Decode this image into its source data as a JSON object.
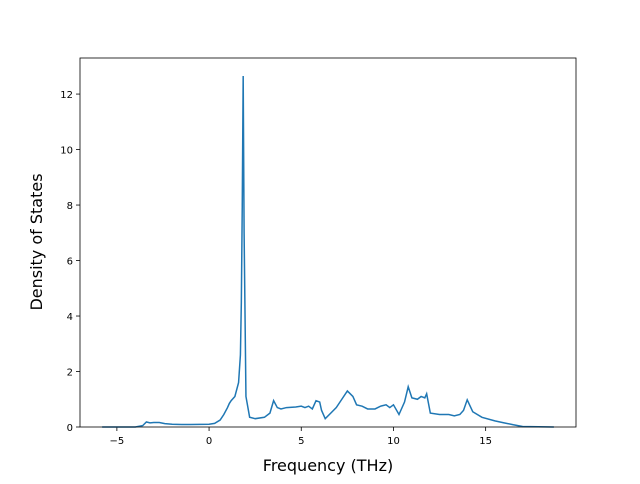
{
  "chart_data": {
    "type": "line",
    "xlabel": "Frequency (THz)",
    "ylabel": "Density of States",
    "x": [
      -5.8,
      -4,
      -3.6,
      -3.4,
      -3.2,
      -3,
      -2.7,
      -2.4,
      -2,
      -1.5,
      -1,
      0,
      0.3,
      0.6,
      0.8,
      1,
      1.1,
      1.2,
      1.4,
      1.6,
      1.7,
      1.75,
      1.8,
      1.85,
      1.9,
      2.0,
      2.2,
      2.5,
      3,
      3.3,
      3.5,
      3.7,
      3.9,
      4.2,
      4.7,
      5,
      5.2,
      5.4,
      5.6,
      5.8,
      6,
      6.1,
      6.3,
      6.6,
      6.9,
      7.2,
      7.5,
      7.8,
      8,
      8.3,
      8.6,
      9,
      9.3,
      9.6,
      9.8,
      10,
      10.3,
      10.6,
      10.8,
      11,
      11.3,
      11.5,
      11.7,
      11.8,
      12,
      12.5,
      13,
      13.3,
      13.6,
      13.8,
      14,
      14.3,
      14.8,
      15.5,
      16,
      16.5,
      17,
      18.7
    ],
    "series": [
      {
        "name": "DOS",
        "color": "#1f77b4",
        "values": [
          0,
          0,
          0.05,
          0.18,
          0.15,
          0.16,
          0.16,
          0.12,
          0.1,
          0.09,
          0.09,
          0.1,
          0.13,
          0.25,
          0.45,
          0.7,
          0.85,
          0.95,
          1.1,
          1.6,
          2.6,
          4.5,
          8,
          12.65,
          7,
          1.1,
          0.35,
          0.3,
          0.35,
          0.5,
          0.95,
          0.7,
          0.65,
          0.7,
          0.72,
          0.75,
          0.7,
          0.75,
          0.65,
          0.95,
          0.9,
          0.6,
          0.3,
          0.5,
          0.7,
          1.0,
          1.3,
          1.1,
          0.8,
          0.75,
          0.65,
          0.65,
          0.75,
          0.8,
          0.7,
          0.8,
          0.45,
          0.9,
          1.45,
          1.05,
          1.0,
          1.1,
          1.05,
          1.2,
          0.5,
          0.45,
          0.45,
          0.4,
          0.45,
          0.6,
          0.98,
          0.55,
          0.35,
          0.22,
          0.15,
          0.08,
          0.02,
          0
        ]
      }
    ],
    "xlim": [
      -7.0,
      19.9
    ],
    "xticks": [
      {
        "value": -5,
        "label": "−5"
      },
      0,
      5,
      10,
      15
    ],
    "ylim": [
      0,
      13.3
    ],
    "yticks": [
      0,
      2,
      4,
      6,
      8,
      10,
      12
    ]
  }
}
